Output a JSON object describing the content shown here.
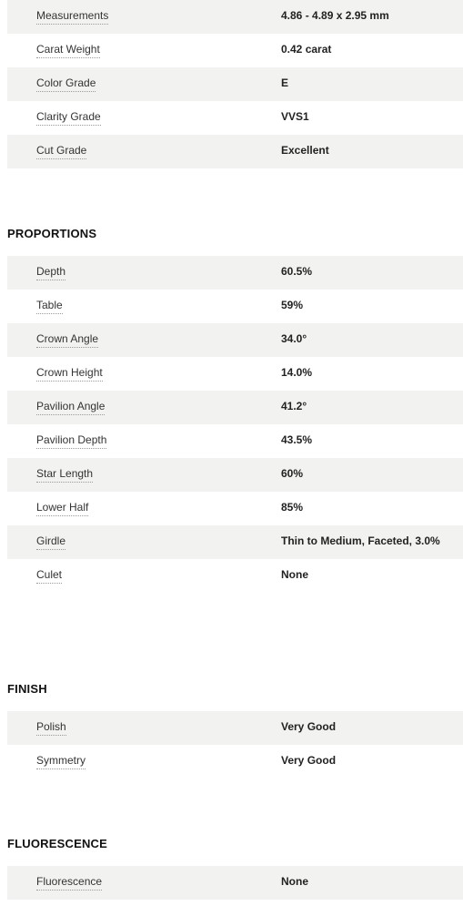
{
  "details": {
    "rows": [
      {
        "label": "Measurements",
        "value": "4.86 - 4.89 x 2.95 mm"
      },
      {
        "label": "Carat Weight",
        "value": "0.42 carat"
      },
      {
        "label": "Color Grade",
        "value": "E"
      },
      {
        "label": "Clarity Grade",
        "value": "VVS1"
      },
      {
        "label": "Cut Grade",
        "value": "Excellent"
      }
    ]
  },
  "proportions": {
    "title": "PROPORTIONS",
    "rows": [
      {
        "label": "Depth",
        "value": "60.5%"
      },
      {
        "label": "Table",
        "value": "59%"
      },
      {
        "label": "Crown Angle",
        "value": "34.0°"
      },
      {
        "label": "Crown Height",
        "value": "14.0%"
      },
      {
        "label": "Pavilion Angle",
        "value": "41.2°"
      },
      {
        "label": "Pavilion Depth",
        "value": "43.5%"
      },
      {
        "label": "Star Length",
        "value": "60%"
      },
      {
        "label": "Lower Half",
        "value": "85%"
      },
      {
        "label": "Girdle",
        "value": "Thin to Medium, Faceted, 3.0%"
      },
      {
        "label": "Culet",
        "value": "None"
      }
    ]
  },
  "finish": {
    "title": "FINISH",
    "rows": [
      {
        "label": "Polish",
        "value": "Very Good"
      },
      {
        "label": "Symmetry",
        "value": "Very Good"
      }
    ]
  },
  "fluorescence": {
    "title": "FLUORESCENCE",
    "rows": [
      {
        "label": "Fluorescence",
        "value": "None"
      }
    ]
  }
}
